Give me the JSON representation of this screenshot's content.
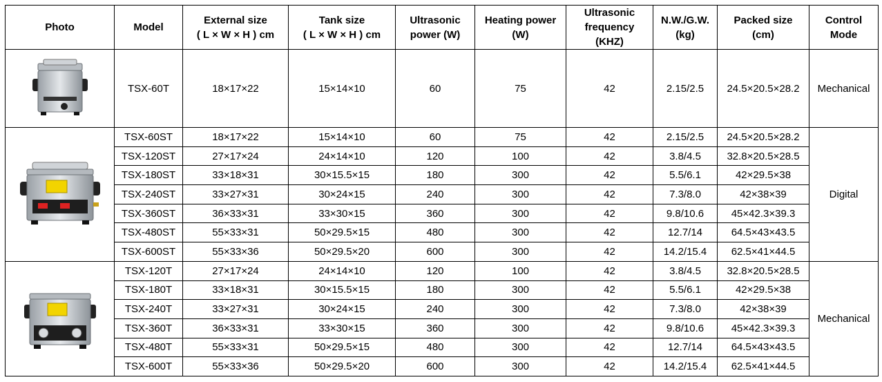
{
  "headers": [
    {
      "lines": [
        "Photo"
      ]
    },
    {
      "lines": [
        "Model"
      ]
    },
    {
      "lines": [
        "External size",
        "( L × W × H ) cm"
      ]
    },
    {
      "lines": [
        "Tank size",
        "( L × W × H ) cm"
      ]
    },
    {
      "lines": [
        "Ultrasonic",
        "power (W)"
      ]
    },
    {
      "lines": [
        "Heating power",
        "(W)"
      ]
    },
    {
      "lines": [
        "Ultrasonic",
        "frequency",
        "(KHZ)"
      ]
    },
    {
      "lines": [
        "N.W./G.W.",
        "(kg)"
      ]
    },
    {
      "lines": [
        "Packed size",
        "(cm)"
      ]
    },
    {
      "lines": [
        "Control",
        "Mode"
      ]
    }
  ],
  "groups": [
    {
      "photo_icon": "small-mechanical-ultrasonic-cleaner",
      "mode": "Mechanical",
      "rows": [
        {
          "model": "TSX-60T",
          "external": "18×17×22",
          "tank": "15×14×10",
          "power": "60",
          "heating": "75",
          "freq": "42",
          "weight": "2.15/2.5",
          "packed": "24.5×20.5×28.2"
        }
      ]
    },
    {
      "photo_icon": "digital-ultrasonic-cleaner",
      "mode": "Digital",
      "rows": [
        {
          "model": "TSX-60ST",
          "external": "18×17×22",
          "tank": "15×14×10",
          "power": "60",
          "heating": "75",
          "freq": "42",
          "weight": "2.15/2.5",
          "packed": "24.5×20.5×28.2"
        },
        {
          "model": "TSX-120ST",
          "external": "27×17×24",
          "tank": "24×14×10",
          "power": "120",
          "heating": "100",
          "freq": "42",
          "weight": "3.8/4.5",
          "packed": "32.8×20.5×28.5"
        },
        {
          "model": "TSX-180ST",
          "external": "33×18×31",
          "tank": "30×15.5×15",
          "power": "180",
          "heating": "300",
          "freq": "42",
          "weight": "5.5/6.1",
          "packed": "42×29.5×38"
        },
        {
          "model": "TSX-240ST",
          "external": "33×27×31",
          "tank": "30×24×15",
          "power": "240",
          "heating": "300",
          "freq": "42",
          "weight": "7.3/8.0",
          "packed": "42×38×39"
        },
        {
          "model": "TSX-360ST",
          "external": "36×33×31",
          "tank": "33×30×15",
          "power": "360",
          "heating": "300",
          "freq": "42",
          "weight": "9.8/10.6",
          "packed": "45×42.3×39.3"
        },
        {
          "model": "TSX-480ST",
          "external": "55×33×31",
          "tank": "50×29.5×15",
          "power": "480",
          "heating": "300",
          "freq": "42",
          "weight": "12.7/14",
          "packed": "64.5×43×43.5"
        },
        {
          "model": "TSX-600ST",
          "external": "55×33×36",
          "tank": "50×29.5×20",
          "power": "600",
          "heating": "300",
          "freq": "42",
          "weight": "14.2/15.4",
          "packed": "62.5×41×44.5"
        }
      ]
    },
    {
      "photo_icon": "mechanical-ultrasonic-cleaner",
      "mode": "Mechanical",
      "rows": [
        {
          "model": "TSX-120T",
          "external": "27×17×24",
          "tank": "24×14×10",
          "power": "120",
          "heating": "100",
          "freq": "42",
          "weight": "3.8/4.5",
          "packed": "32.8×20.5×28.5"
        },
        {
          "model": "TSX-180T",
          "external": "33×18×31",
          "tank": "30×15.5×15",
          "power": "180",
          "heating": "300",
          "freq": "42",
          "weight": "5.5/6.1",
          "packed": "42×29.5×38"
        },
        {
          "model": "TSX-240T",
          "external": "33×27×31",
          "tank": "30×24×15",
          "power": "240",
          "heating": "300",
          "freq": "42",
          "weight": "7.3/8.0",
          "packed": "42×38×39"
        },
        {
          "model": "TSX-360T",
          "external": "36×33×31",
          "tank": "33×30×15",
          "power": "360",
          "heating": "300",
          "freq": "42",
          "weight": "9.8/10.6",
          "packed": "45×42.3×39.3"
        },
        {
          "model": "TSX-480T",
          "external": "55×33×31",
          "tank": "50×29.5×15",
          "power": "480",
          "heating": "300",
          "freq": "42",
          "weight": "12.7/14",
          "packed": "64.5×43×43.5"
        },
        {
          "model": "TSX-600T",
          "external": "55×33×36",
          "tank": "50×29.5×20",
          "power": "600",
          "heating": "300",
          "freq": "42",
          "weight": "14.2/15.4",
          "packed": "62.5×41×44.5"
        }
      ]
    }
  ]
}
